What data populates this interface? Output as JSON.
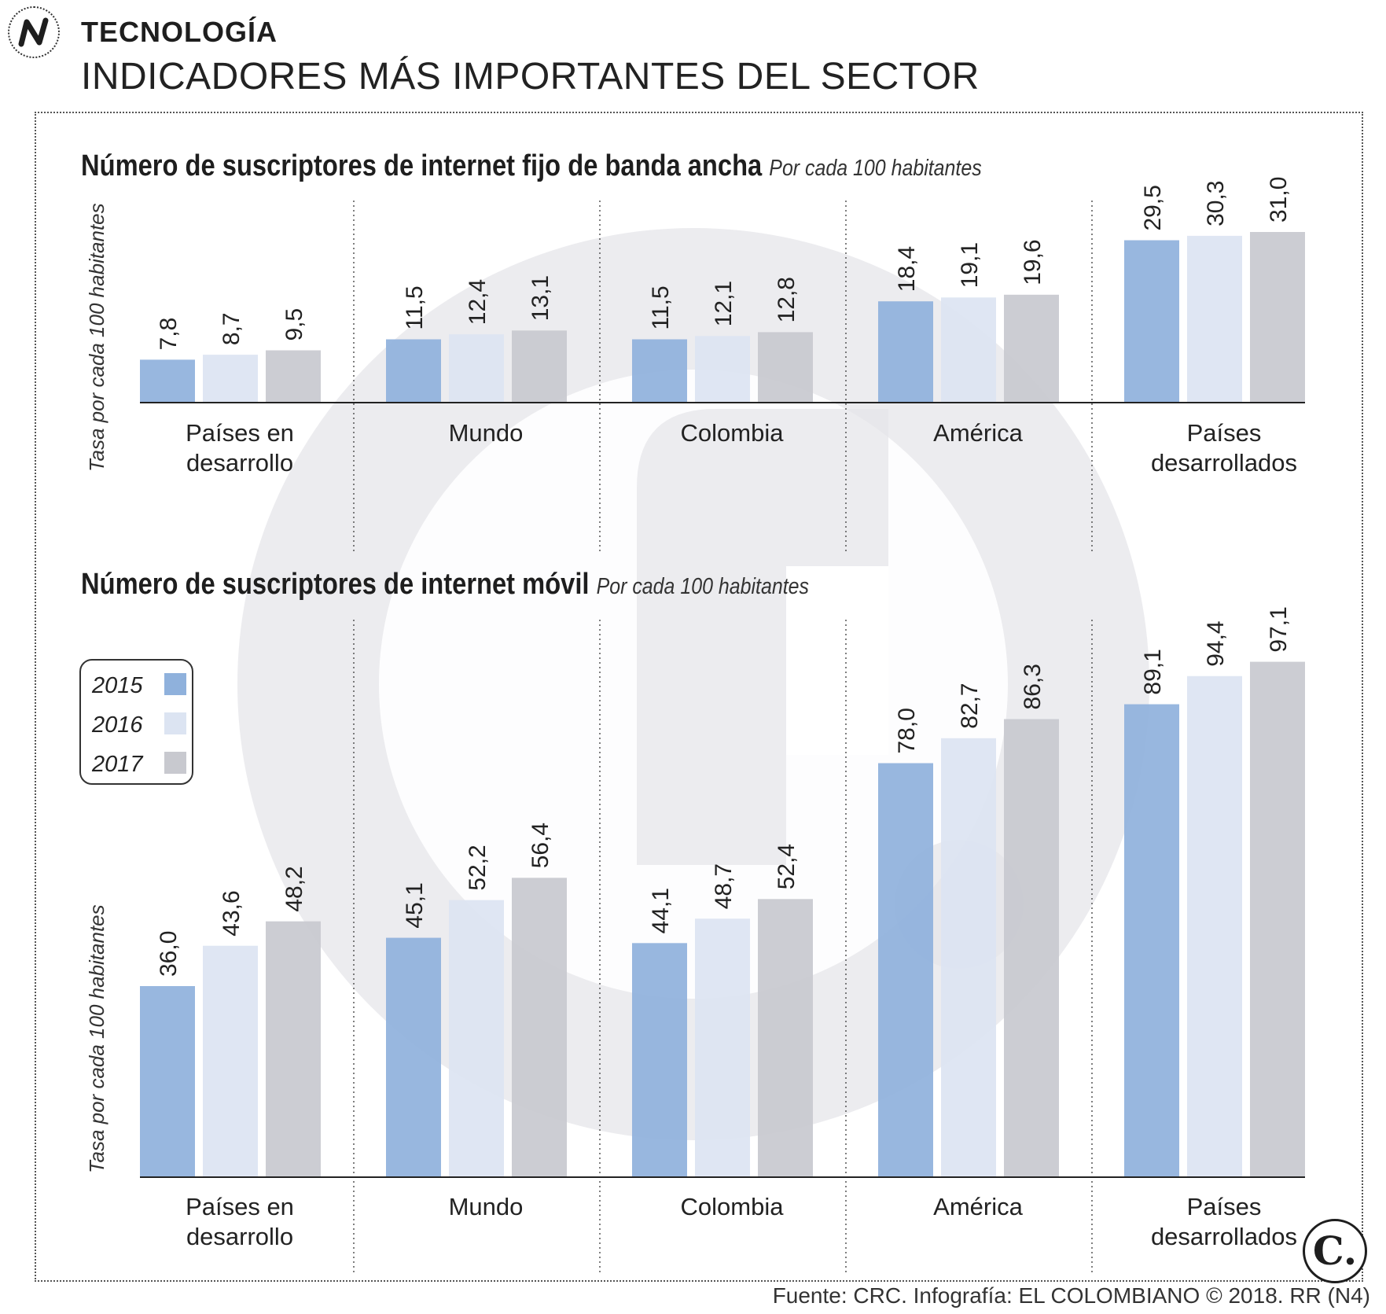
{
  "header": {
    "logo_icon": "n-zigzag-icon",
    "section": "TECNOLOGÍA",
    "headline": "INDICADORES MÁS IMPORTANTES DEL SECTOR"
  },
  "colors": {
    "s2015": "#8fb1dc",
    "s2016": "#dce4f2",
    "s2017": "#c8c9cf",
    "watermark": "#e6e6ea"
  },
  "legend": [
    {
      "label": "2015",
      "color": "#8fb1dc"
    },
    {
      "label": "2016",
      "color": "#dce4f2"
    },
    {
      "label": "2017",
      "color": "#c8c9cf"
    }
  ],
  "chart_data": [
    {
      "type": "bar",
      "title": "Número de suscriptores de internet fijo de banda ancha",
      "subtitle": "Por cada 100 habitantes",
      "ylabel": "Tasa por cada 100 habitantes",
      "categories": [
        "Países en desarrollo",
        "Mundo",
        "Colombia",
        "América",
        "Países desarrollados"
      ],
      "category_lines": [
        [
          "Países en",
          "desarrollo"
        ],
        [
          "Mundo"
        ],
        [
          "Colombia"
        ],
        [
          "América"
        ],
        [
          "Países",
          "desarrollados"
        ]
      ],
      "series": [
        {
          "name": "2015",
          "values": [
            7.8,
            11.5,
            11.5,
            18.4,
            29.5
          ],
          "labels": [
            "7,8",
            "11,5",
            "11,5",
            "18,4",
            "29,5"
          ]
        },
        {
          "name": "2016",
          "values": [
            8.7,
            12.4,
            12.1,
            19.1,
            30.3
          ],
          "labels": [
            "8,7",
            "12,4",
            "12,1",
            "19,1",
            "30,3"
          ]
        },
        {
          "name": "2017",
          "values": [
            9.5,
            13.1,
            12.8,
            19.6,
            31.0
          ],
          "labels": [
            "9,5",
            "13,1",
            "12,8",
            "19,6",
            "31,0"
          ]
        }
      ],
      "ylim": [
        0,
        31
      ]
    },
    {
      "type": "bar",
      "title": "Número de suscriptores de internet móvil",
      "subtitle": "Por cada 100 habitantes",
      "ylabel": "Tasa por cada 100 habitantes",
      "categories": [
        "Países en desarrollo",
        "Mundo",
        "Colombia",
        "América",
        "Países desarrollados"
      ],
      "category_lines": [
        [
          "Países en",
          "desarrollo"
        ],
        [
          "Mundo"
        ],
        [
          "Colombia"
        ],
        [
          "América"
        ],
        [
          "Países",
          "desarrollados"
        ]
      ],
      "series": [
        {
          "name": "2015",
          "values": [
            36.0,
            45.1,
            44.1,
            78.0,
            89.1
          ],
          "labels": [
            "36,0",
            "45,1",
            "44,1",
            "78,0",
            "89,1"
          ]
        },
        {
          "name": "2016",
          "values": [
            43.6,
            52.2,
            48.7,
            82.7,
            94.4
          ],
          "labels": [
            "43,6",
            "52,2",
            "48,7",
            "82,7",
            "94,4"
          ]
        },
        {
          "name": "2017",
          "values": [
            48.2,
            56.4,
            52.4,
            86.3,
            97.1
          ],
          "labels": [
            "48,2",
            "56,4",
            "52,4",
            "86,3",
            "97,1"
          ]
        }
      ],
      "ylim": [
        0,
        97.1
      ]
    }
  ],
  "badge": "C.",
  "footer": "Fuente: CRC. Infografía: EL COLOMBIANO © 2018. RR (N4)"
}
